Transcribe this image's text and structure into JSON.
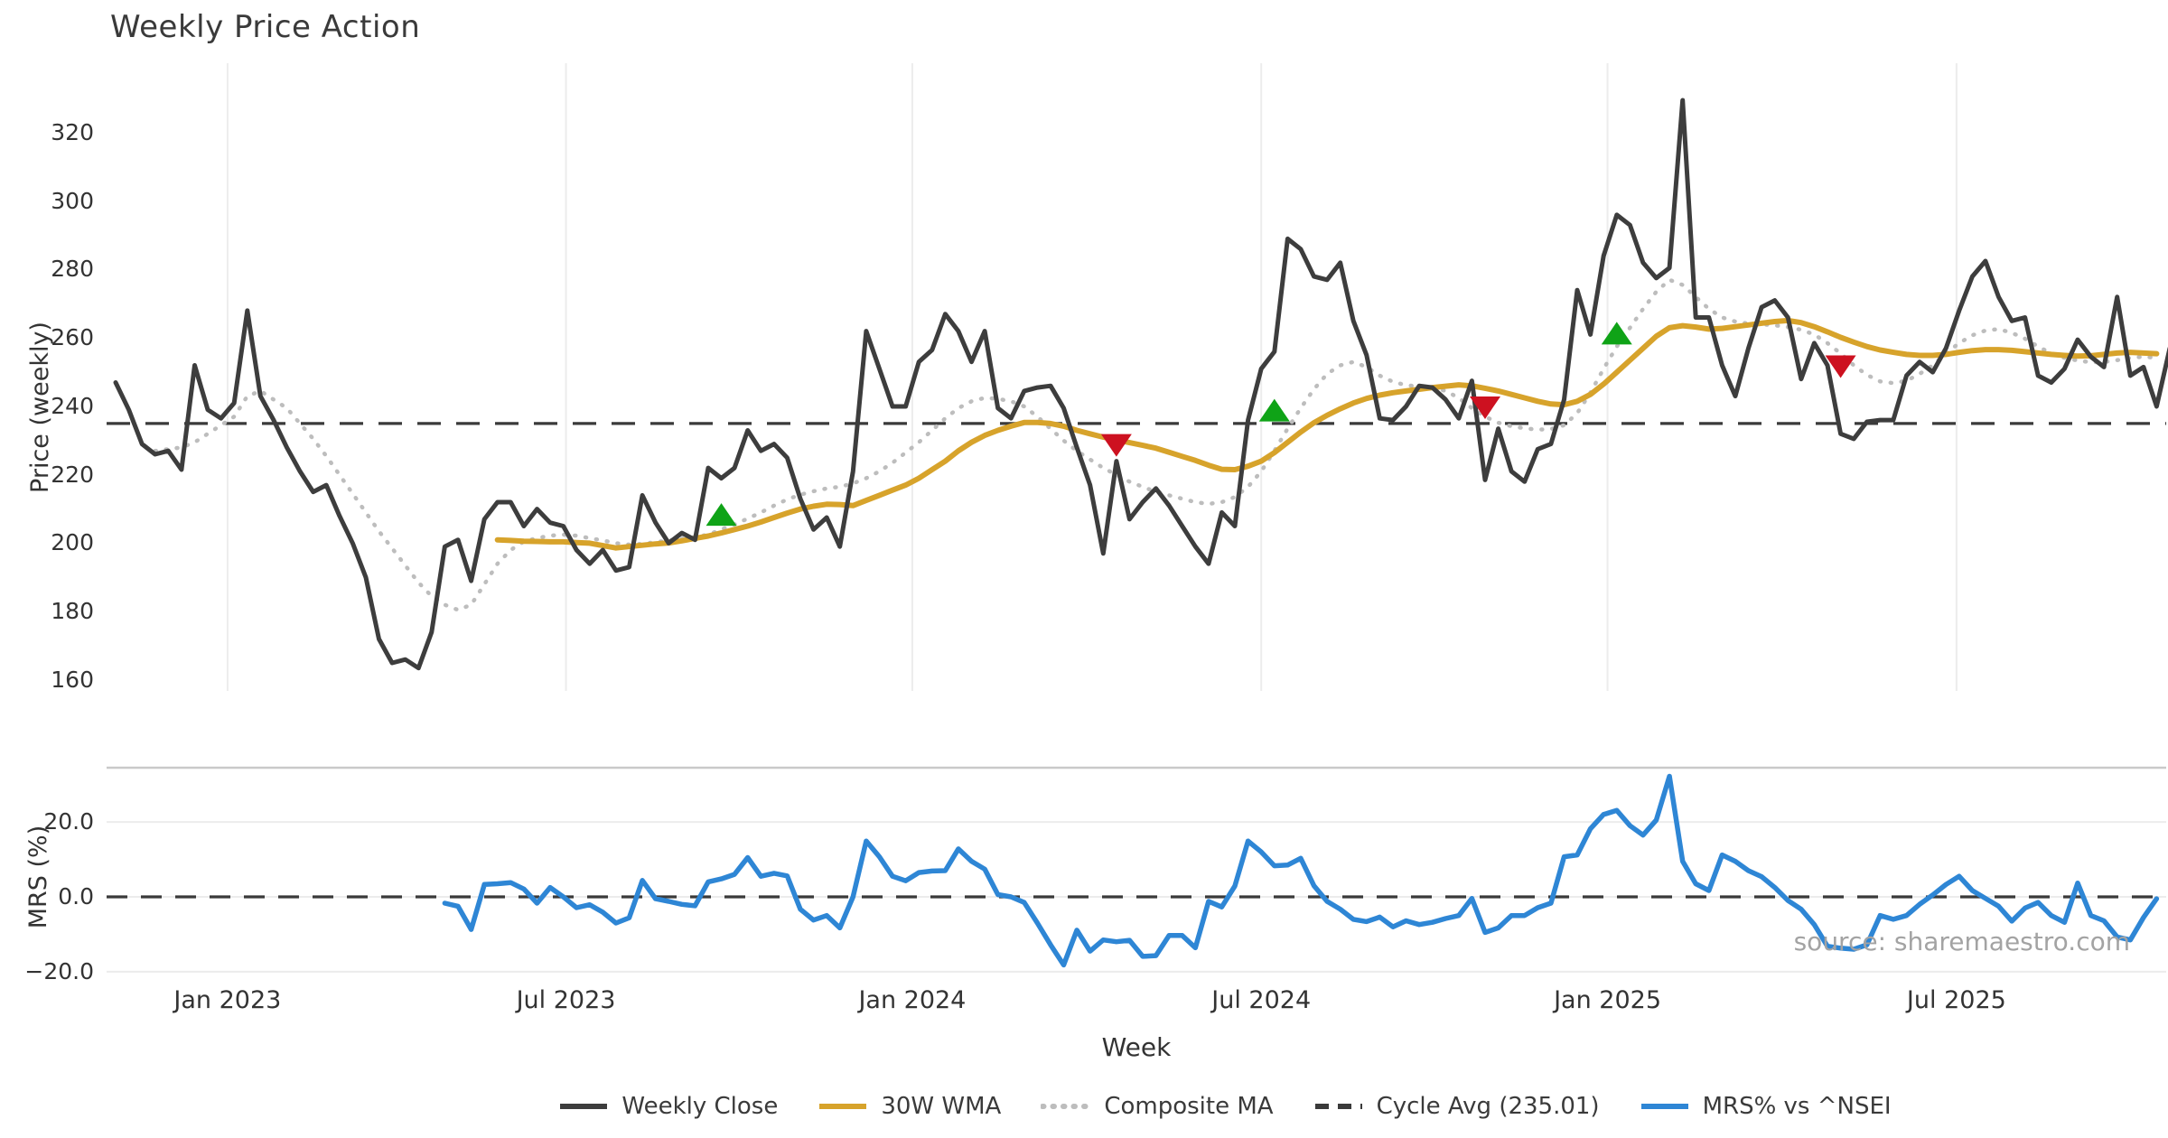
{
  "title": "Weekly Price Action",
  "source_note": "source: sharemaestro.com",
  "colors": {
    "weekly_close": "#3d3d3d",
    "wma_30w": "#d7a32b",
    "composite_ma": "#bdbdbd",
    "cycle_avg": "#3a3a3a",
    "mrs": "#2e86d5",
    "buy_marker": "#0fa317",
    "sell_marker": "#cd1120",
    "grid": "#ececec",
    "panel_border": "#c9c9c9",
    "text": "#333333",
    "muted_text": "#a3a3a3"
  },
  "legend": [
    {
      "label": "Weekly Close",
      "color": "#3d3d3d",
      "dash": "solid"
    },
    {
      "label": "30W WMA",
      "color": "#d7a32b",
      "dash": "solid"
    },
    {
      "label": "Composite MA",
      "color": "#bdbdbd",
      "dash": "dotted"
    },
    {
      "label": "Cycle Avg (235.01)",
      "color": "#3a3a3a",
      "dash": "dashed"
    },
    {
      "label": "MRS% vs ^NSEI",
      "color": "#2e86d5",
      "dash": "solid"
    }
  ],
  "chart_data": {
    "type": "line",
    "title": "Weekly Price Action",
    "x_label": "Week",
    "x_unit": "week_index",
    "x_ticks": [
      {
        "label": "Jan 2023",
        "week": 8.5
      },
      {
        "label": "Jul 2023",
        "week": 34.2
      },
      {
        "label": "Jan 2024",
        "week": 60.5
      },
      {
        "label": "Jul 2024",
        "week": 87.0
      },
      {
        "label": "Jan 2025",
        "week": 113.3
      },
      {
        "label": "Jul 2025",
        "week": 139.8
      }
    ],
    "price_panel": {
      "y_label": "Price (weekly)",
      "y_ticks": [
        320,
        300,
        280,
        260,
        240,
        220,
        200,
        180,
        160
      ],
      "ylim": [
        157,
        339
      ],
      "grid": "vertical-only",
      "cycle_avg": 235.01,
      "weekly_close": {
        "start_week": 0,
        "values": [
          247,
          239,
          229,
          226,
          227,
          221.5,
          252,
          239,
          236.5,
          241,
          268,
          243,
          236,
          228,
          221,
          215,
          217,
          208,
          200,
          190,
          172,
          165,
          166,
          163.5,
          174,
          199,
          201,
          189,
          207,
          212,
          212,
          205,
          210,
          206,
          205,
          198,
          194,
          198,
          192,
          193,
          214,
          206,
          200,
          203,
          201,
          222,
          219,
          222,
          233,
          227,
          229,
          225,
          213,
          204,
          207.5,
          199,
          221,
          262,
          251,
          240,
          240,
          253,
          256.5,
          267,
          262,
          253,
          262,
          239.5,
          236.5,
          244.5,
          245.5,
          246,
          239.5,
          228,
          217,
          197,
          224,
          207,
          212,
          216,
          211,
          205,
          199,
          194,
          209,
          205,
          236,
          251,
          256,
          289,
          286,
          278,
          277,
          282,
          265,
          255,
          236.5,
          236,
          240,
          246,
          245.5,
          242,
          236.5,
          247.5,
          218.5,
          233.5,
          221,
          218,
          227.5,
          229,
          242,
          274,
          261,
          284,
          296,
          293,
          282,
          277.5,
          280.5,
          329.5,
          266,
          266,
          252,
          243,
          257,
          269,
          271,
          266,
          248,
          258.5,
          252,
          232,
          230.5,
          235.5,
          236,
          236,
          249,
          253,
          250,
          257,
          268,
          278,
          282.5,
          272,
          265,
          266,
          249,
          247,
          251,
          259.5,
          254.5,
          251.5,
          272,
          249,
          251.5,
          240,
          257
        ]
      },
      "wma_30w": {
        "start_week": 29,
        "values": [
          201,
          200.8,
          200.6,
          200.5,
          200.4,
          200.4,
          200.2,
          200,
          199.3,
          198.6,
          199,
          199.4,
          199.8,
          200.1,
          200.7,
          201.4,
          202.1,
          203,
          204,
          205,
          206.2,
          207.5,
          208.8,
          210,
          210.8,
          211.4,
          211.3,
          211,
          212.5,
          214,
          215.5,
          217,
          219,
          221.5,
          224,
          227,
          229.5,
          231.5,
          233,
          234.2,
          235.3,
          235.3,
          235,
          234.2,
          233,
          232,
          231,
          230.2,
          229.4,
          228.6,
          227.8,
          226.6,
          225.4,
          224.2,
          222.8,
          221.6,
          221.5,
          222.5,
          224,
          226.5,
          229.5,
          232.5,
          235.2,
          237.4,
          239.3,
          241,
          242.3,
          243.3,
          244,
          244.5,
          245,
          245.5,
          245.9,
          246.3,
          246,
          245.3,
          244.5,
          243.5,
          242.5,
          241.5,
          240.7,
          240.5,
          241.5,
          243.5,
          246.5,
          250,
          253.5,
          257,
          260.5,
          263,
          263.6,
          263.2,
          262.6,
          262.8,
          263.3,
          263.8,
          264.3,
          264.8,
          265.1,
          264.5,
          263.3,
          261.8,
          260.2,
          258.8,
          257.5,
          256.5,
          255.8,
          255.2,
          254.9,
          254.9,
          255.2,
          255.8,
          256.3,
          256.6,
          256.6,
          256.4,
          256,
          255.6,
          255.2,
          254.9,
          254.7,
          254.8,
          255.2,
          255.6,
          255.8,
          255.6,
          255.4
        ]
      },
      "composite_ma": {
        "start_week": 3,
        "values": [
          227,
          227.5,
          228,
          229.5,
          232,
          234.5,
          237,
          243,
          244.5,
          242,
          239.5,
          235,
          230.5,
          225.5,
          220,
          214.5,
          209,
          203.5,
          198.5,
          193.5,
          188.5,
          184.5,
          182,
          180.5,
          182,
          188,
          194,
          198,
          200.5,
          201.5,
          202.2,
          202.5,
          202.2,
          201.5,
          200.8,
          200,
          199.6,
          199.8,
          200.3,
          200.8,
          201.3,
          201.8,
          202.5,
          204,
          205.5,
          207.2,
          209,
          211,
          212.8,
          214.2,
          215.2,
          216,
          216.5,
          217.5,
          219,
          221,
          223.5,
          226.5,
          229.5,
          233,
          236.5,
          239.5,
          241.5,
          242.5,
          242.2,
          241.5,
          240,
          237,
          233.5,
          230,
          227,
          224.5,
          222,
          220,
          218,
          216.5,
          215,
          214,
          213,
          212,
          211.5,
          212,
          213.5,
          216.5,
          221,
          227,
          233.5,
          239.5,
          245,
          249.5,
          252,
          253,
          251.5,
          249,
          247.2,
          246.2,
          245.8,
          245.5,
          244.5,
          242.5,
          239.5,
          237,
          235.2,
          234.2,
          233.6,
          233.2,
          233.4,
          234.5,
          238,
          244,
          251,
          257.5,
          263,
          268.5,
          273.5,
          277,
          275.5,
          272,
          268.5,
          266,
          264.8,
          264.2,
          264,
          263.7,
          263.2,
          262.4,
          261,
          258.5,
          255.5,
          252,
          249.2,
          247.3,
          246.8,
          247.5,
          249.5,
          252,
          255.5,
          258.5,
          260.8,
          262.2,
          262.6,
          261.5,
          259.8,
          257.5,
          255.5,
          254.2,
          253.4,
          252.9,
          253,
          253.5,
          254.2,
          254.5,
          254.2
        ]
      },
      "markers": [
        {
          "week": 46,
          "price": 208,
          "type": "buy"
        },
        {
          "week": 76,
          "price": 229,
          "type": "sell"
        },
        {
          "week": 88,
          "price": 238.5,
          "type": "buy"
        },
        {
          "week": 104,
          "price": 240,
          "type": "sell"
        },
        {
          "week": 114,
          "price": 261,
          "type": "buy"
        },
        {
          "week": 131,
          "price": 252,
          "type": "sell"
        }
      ]
    },
    "mrs_panel": {
      "y_label": "MRS (%)",
      "y_ticks": [
        {
          "label": "20.0",
          "value": 20
        },
        {
          "label": "0.0",
          "value": 0
        },
        {
          "label": "−20.0",
          "value": -20
        }
      ],
      "ylim": [
        -23,
        34.5
      ],
      "zero_line": 0,
      "mrs_pct": {
        "start_week": 25,
        "values": [
          -1.7,
          -2.5,
          -8.7,
          3.3,
          3.5,
          3.8,
          2.1,
          -1.7,
          2.5,
          0,
          -2.9,
          -2.1,
          -4.1,
          -7,
          -5.6,
          4.4,
          -0.5,
          -1.2,
          -2,
          -2.4,
          4,
          4.8,
          6,
          10.5,
          5.5,
          6.3,
          5.6,
          -3.3,
          -6.2,
          -5,
          -8.3,
          0,
          14.9,
          10.7,
          5.5,
          4.3,
          6.5,
          6.9,
          7,
          12.8,
          9.5,
          7.4,
          0.6,
          0,
          -1.5,
          -7,
          -12.8,
          -18.2,
          -8.9,
          -14.5,
          -11.5,
          -12,
          -11.6,
          -15.9,
          -15.7,
          -10.3,
          -10.3,
          -13.6,
          -1.2,
          -2.7,
          2.9,
          14.9,
          12,
          8.3,
          8.5,
          10.3,
          3,
          -1.2,
          -3.3,
          -6,
          -6.6,
          -5.4,
          -8,
          -6.4,
          -7.4,
          -6.8,
          -5.8,
          -5,
          -0.4,
          -9.5,
          -8.3,
          -5,
          -5,
          -2.9,
          -1.7,
          10.7,
          11.2,
          18.2,
          22,
          23.1,
          19,
          16.5,
          20.5,
          32.2,
          9.5,
          3.5,
          1.7,
          11.2,
          9.5,
          7,
          5.4,
          2.5,
          -1,
          -3.3,
          -7.4,
          -13.2,
          -13.7,
          -14,
          -12.8,
          -5,
          -6,
          -5,
          -2,
          0.5,
          3.3,
          5.5,
          1.7,
          -0.4,
          -2.5,
          -6.5,
          -3,
          -1.5,
          -5,
          -6.8,
          3.7,
          -5,
          -6.4,
          -10.7,
          -11.5,
          -5.5,
          -0.5
        ]
      }
    }
  }
}
